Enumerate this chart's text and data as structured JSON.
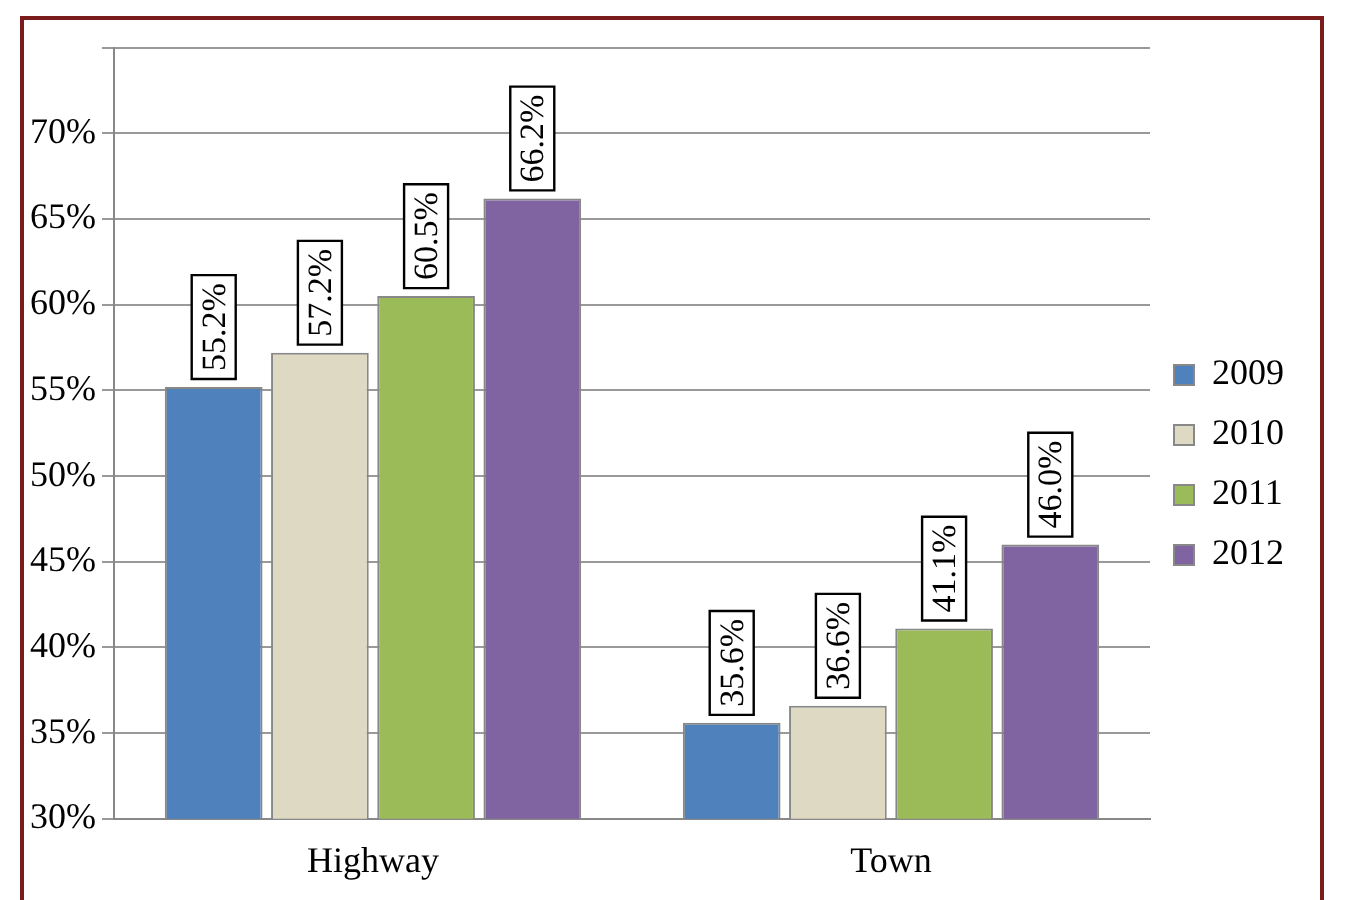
{
  "chart_data": {
    "type": "bar",
    "categories": [
      "Highway",
      "Town"
    ],
    "series": [
      {
        "name": "2009",
        "color": "#4f81bd",
        "values": [
          55.2,
          35.6
        ],
        "value_labels": [
          "55.2%",
          "35.6%"
        ]
      },
      {
        "name": "2010",
        "color": "#ddd9c3",
        "values": [
          57.2,
          36.6
        ],
        "value_labels": [
          "57.2%",
          "36.6%"
        ]
      },
      {
        "name": "2011",
        "color": "#9bbb59",
        "values": [
          60.5,
          41.1
        ],
        "value_labels": [
          "60.5%",
          "41.1%"
        ]
      },
      {
        "name": "2012",
        "color": "#8064a2",
        "values": [
          66.2,
          46.0
        ],
        "value_labels": [
          "66.2%",
          "46.0%"
        ]
      }
    ],
    "ylim": [
      30,
      75
    ],
    "yticks": [
      {
        "value": 30,
        "label": "30%"
      },
      {
        "value": 35,
        "label": "35%"
      },
      {
        "value": 40,
        "label": "40%"
      },
      {
        "value": 45,
        "label": "45%"
      },
      {
        "value": 50,
        "label": "50%"
      },
      {
        "value": 55,
        "label": "55%"
      },
      {
        "value": 60,
        "label": "60%"
      },
      {
        "value": 65,
        "label": "65%"
      },
      {
        "value": 70,
        "label": "70%"
      },
      {
        "value": 75,
        "label": null
      }
    ],
    "grid": "y",
    "legend": "right"
  }
}
